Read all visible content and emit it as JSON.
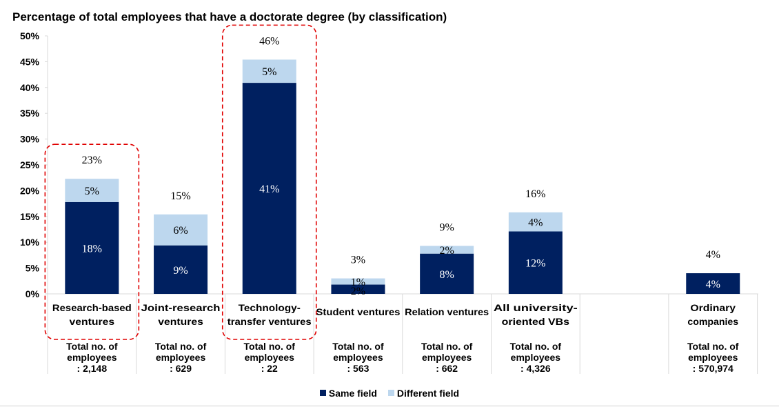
{
  "chart_data": {
    "type": "bar",
    "stacked": true,
    "title": "Percentage of total employees that have a doctorate degree (by classification)",
    "ylim": [
      0,
      50
    ],
    "yticks": [
      "0%",
      "5%",
      "10%",
      "15%",
      "20%",
      "25%",
      "30%",
      "35%",
      "40%",
      "45%",
      "50%"
    ],
    "categories": [
      [
        "Research-based",
        "ventures"
      ],
      [
        "Joint-research",
        "ventures"
      ],
      [
        "Technology-",
        "transfer ventures"
      ],
      [
        "Student ventures"
      ],
      [
        "Relation ventures"
      ],
      [
        "All university-",
        "oriented VBs"
      ],
      [],
      [
        "Ordinary",
        "companies"
      ]
    ],
    "series": [
      {
        "name": "Same field",
        "color": "#002060",
        "values": [
          17.8,
          9.4,
          40.9,
          1.8,
          7.8,
          12.1,
          null,
          4.0
        ],
        "labels": [
          "18%",
          "9%",
          "41%",
          "2%",
          "8%",
          "12%",
          "",
          "4%"
        ]
      },
      {
        "name": "Different field",
        "color": "#bdd7ee",
        "values": [
          4.5,
          6.0,
          4.5,
          1.2,
          1.5,
          3.7,
          null,
          0
        ],
        "labels": [
          "5%",
          "6%",
          "5%",
          "1%",
          "2%",
          "4%",
          "",
          ""
        ]
      }
    ],
    "totals": [
      "23%",
      "15%",
      "46%",
      "3%",
      "9%",
      "16%",
      "",
      "4%"
    ],
    "employee_totals": [
      [
        "Total no. of",
        "employees",
        ": 2,148"
      ],
      [
        "Total no. of",
        "employees",
        ": 629"
      ],
      [
        "Total no. of",
        "employees",
        ": 22"
      ],
      [
        "Total no. of",
        "employees",
        ": 563"
      ],
      [
        "Total no. of",
        "employees",
        ": 662"
      ],
      [
        "Total no. of",
        "employees",
        ": 4,326"
      ],
      [],
      [
        "Total no. of",
        "employees",
        ": 570,974"
      ]
    ],
    "highlighted": [
      0,
      2
    ],
    "highlight_color": "#e00000",
    "legend": "bottom-center",
    "grid": false
  },
  "legend": {
    "same_label": "Same field",
    "different_label": "Different field"
  }
}
